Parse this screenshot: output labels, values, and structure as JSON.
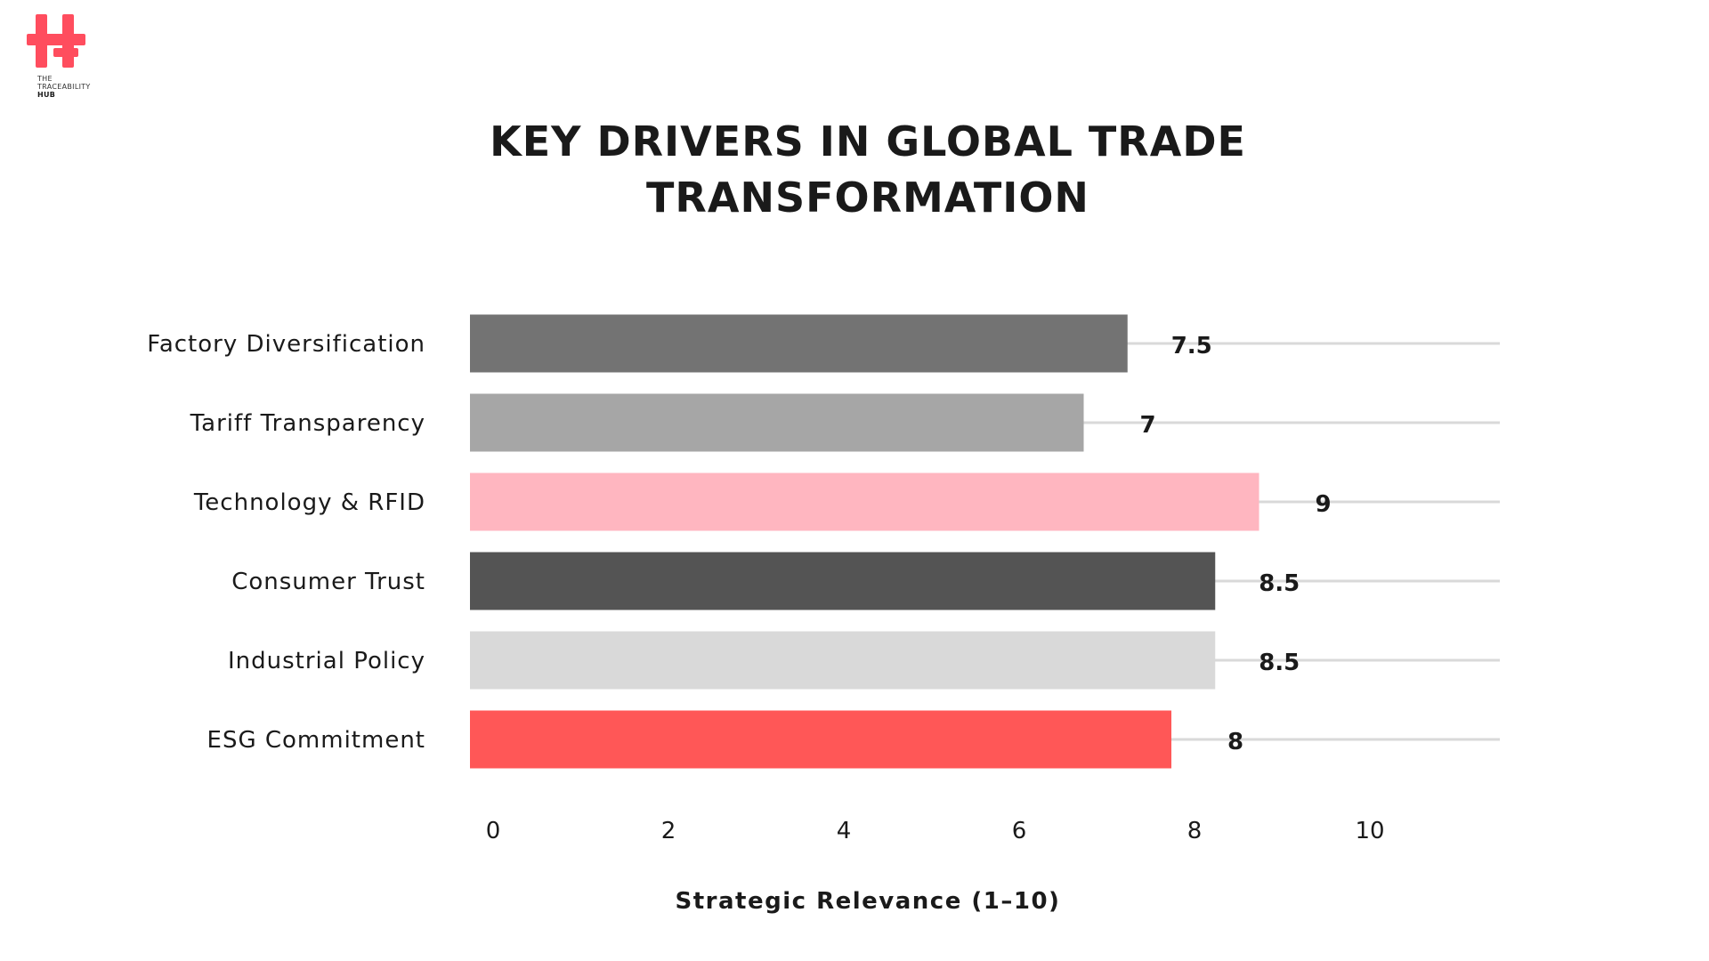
{
  "logo": {
    "line1": "THE",
    "line2": "TRACEABILITY",
    "line3": "HUB",
    "color": "#ff4d5e"
  },
  "chart_data": {
    "type": "bar",
    "orientation": "horizontal",
    "title_lines": [
      "KEY DRIVERS IN GLOBAL TRADE",
      "TRANSFORMATION"
    ],
    "categories": [
      "Factory Diversification",
      "Tariff Transparency",
      "Technology & RFID",
      "Consumer Trust",
      "Industrial Policy",
      "ESG Commitment"
    ],
    "values": [
      7.5,
      7,
      9,
      8.5,
      8.5,
      8
    ],
    "value_labels": [
      "7.5",
      "7",
      "9",
      "8.5",
      "8.5",
      "8"
    ],
    "colors": [
      "#737373",
      "#a6a6a6",
      "#ffb6c0",
      "#545454",
      "#d9d9d9",
      "#ff5757"
    ],
    "xlabel": "Strategic Relevance (1–10)",
    "ylabel": "",
    "xlim": [
      0,
      10.5
    ],
    "xticks": [
      0,
      2,
      4,
      6,
      8,
      10
    ],
    "grid": false,
    "legend": "none"
  }
}
